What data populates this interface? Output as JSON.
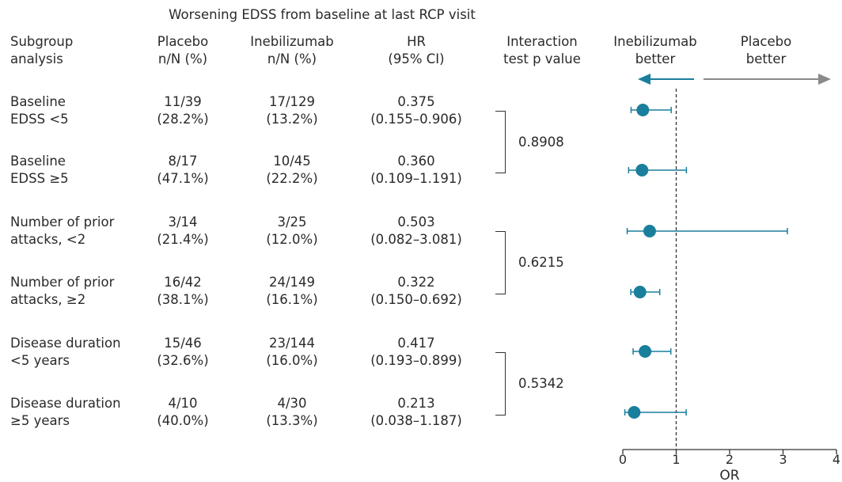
{
  "header": {
    "group_title": "Worsening EDSS from baseline at last RCP visit",
    "subgroup_col": [
      "Subgroup",
      "analysis"
    ],
    "placebo_col": [
      "Placebo",
      "n/N (%)"
    ],
    "inebilizumab_col": [
      "Inebilizumab",
      "n/N (%)"
    ],
    "hr_col": [
      "HR",
      "(95% CI)"
    ],
    "interaction_col": [
      "Interaction",
      "test p value"
    ],
    "favors_left": [
      "Inebilizumab",
      "better"
    ],
    "favors_right": [
      "Placebo",
      "better"
    ]
  },
  "rows": [
    {
      "label": [
        "Baseline",
        "EDSS <5"
      ],
      "placebo": [
        "11/39",
        "(28.2%)"
      ],
      "inebilizumab": [
        "17/129",
        "(13.2%)"
      ],
      "hr": [
        "0.375",
        "(0.155–0.906)"
      ]
    },
    {
      "label": [
        "Baseline",
        "EDSS ≥5"
      ],
      "placebo": [
        "8/17",
        "(47.1%)"
      ],
      "inebilizumab": [
        "10/45",
        "(22.2%)"
      ],
      "hr": [
        "0.360",
        "(0.109–1.191)"
      ]
    },
    {
      "label": [
        "Number of prior",
        "attacks, <2"
      ],
      "placebo": [
        "3/14",
        "(21.4%)"
      ],
      "inebilizumab": [
        "3/25",
        "(12.0%)"
      ],
      "hr": [
        "0.503",
        "(0.082–3.081)"
      ]
    },
    {
      "label": [
        "Number of prior",
        "attacks, ≥2"
      ],
      "placebo": [
        "16/42",
        "(38.1%)"
      ],
      "inebilizumab": [
        "24/149",
        "(16.1%)"
      ],
      "hr": [
        "0.322",
        "(0.150–0.692)"
      ]
    },
    {
      "label": [
        "Disease duration",
        "<5 years"
      ],
      "placebo": [
        "15/46",
        "(32.6%)"
      ],
      "inebilizumab": [
        "23/144",
        "(16.0%)"
      ],
      "hr": [
        "0.417",
        "(0.193–0.899)"
      ]
    },
    {
      "label": [
        "Disease duration",
        "≥5 years"
      ],
      "placebo": [
        "4/10",
        "(40.0%)"
      ],
      "inebilizumab": [
        "4/30",
        "(13.3%)"
      ],
      "hr": [
        "0.213",
        "(0.038–1.187)"
      ]
    }
  ],
  "interaction_p": [
    "0.8908",
    "0.6215",
    "0.5342"
  ],
  "chart_data": {
    "type": "scatter",
    "subtype": "forest-plot",
    "xlabel": "OR",
    "xlim": [
      0,
      4
    ],
    "xticks": [
      "0",
      "1",
      "2",
      "3",
      "4"
    ],
    "reference_line": 1,
    "points": [
      {
        "est": 0.375,
        "lo": 0.155,
        "hi": 0.906
      },
      {
        "est": 0.36,
        "lo": 0.109,
        "hi": 1.191
      },
      {
        "est": 0.503,
        "lo": 0.082,
        "hi": 3.081
      },
      {
        "est": 0.322,
        "lo": 0.15,
        "hi": 0.692
      },
      {
        "est": 0.417,
        "lo": 0.193,
        "hi": 0.899
      },
      {
        "est": 0.213,
        "lo": 0.038,
        "hi": 1.187
      }
    ],
    "point_color": "#1a7f9c",
    "left_arrow_color": "#1a7f9c",
    "right_arrow_color": "#8a8a8a"
  }
}
